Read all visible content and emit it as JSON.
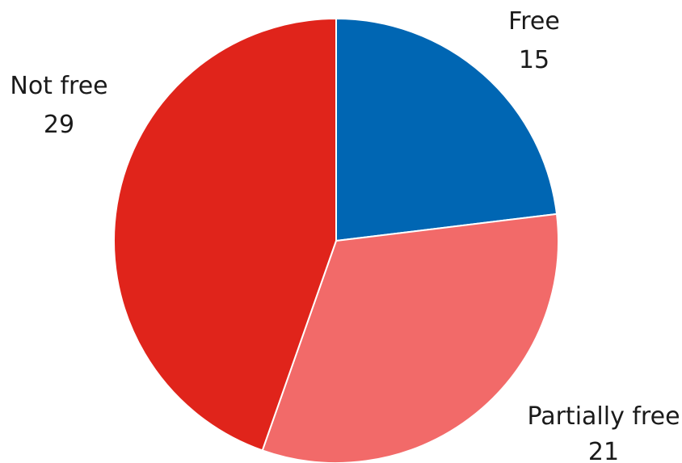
{
  "chart_data": {
    "type": "pie",
    "categories": [
      "Free",
      "Partially free",
      "Not free"
    ],
    "values": [
      15,
      21,
      29
    ],
    "colors": [
      "#0066b3",
      "#f26a69",
      "#e0241b"
    ],
    "slice_labels": [
      {
        "name": "Free",
        "value": "15"
      },
      {
        "name": "Partially free",
        "value": "21"
      },
      {
        "name": "Not free",
        "value": "29"
      }
    ]
  }
}
